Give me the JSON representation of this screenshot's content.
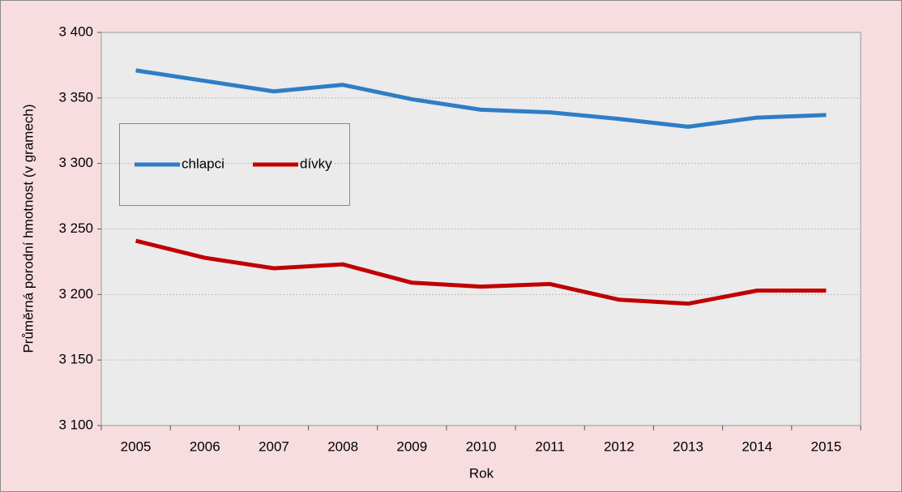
{
  "chart_data": {
    "type": "line",
    "x_label": "Rok",
    "y_label": "Průměrná porodní hmotnost (v gramech)",
    "categories": [
      "2005",
      "2006",
      "2007",
      "2008",
      "2009",
      "2010",
      "2011",
      "2012",
      "2013",
      "2014",
      "2015"
    ],
    "series": [
      {
        "name": "chlapci",
        "color": "#2e7dc6",
        "values": [
          3371,
          3363,
          3355,
          3360,
          3349,
          3341,
          3339,
          3334,
          3328,
          3335,
          3337
        ]
      },
      {
        "name": "dívky",
        "color": "#c00000",
        "values": [
          3241,
          3228,
          3220,
          3223,
          3209,
          3206,
          3208,
          3196,
          3193,
          3203,
          3203
        ]
      }
    ],
    "ylim": [
      3100,
      3400
    ],
    "yticks": [
      {
        "value": 3100,
        "label": "3 100"
      },
      {
        "value": 3150,
        "label": "3 150"
      },
      {
        "value": 3200,
        "label": "3 200"
      },
      {
        "value": 3250,
        "label": "3 250"
      },
      {
        "value": 3300,
        "label": "3 300"
      },
      {
        "value": 3350,
        "label": "3 350"
      },
      {
        "value": 3400,
        "label": "3 400"
      }
    ],
    "grid": true
  }
}
